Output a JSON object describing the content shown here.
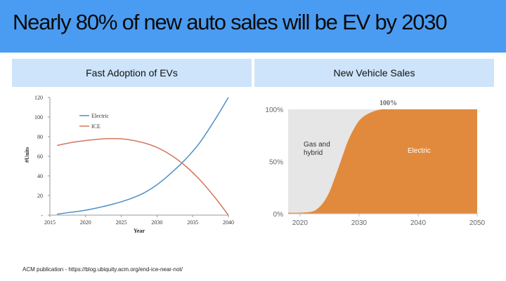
{
  "slide": {
    "title": "Nearly 80% of new auto sales will be EV by 2030",
    "footer": "ACM publication - https://blog.ubiquity.acm.org/end-ice-near-not/"
  },
  "colors": {
    "banner": "#4a9cf2",
    "panel_header": "#cde4fb",
    "electric_line": "#4f8fc6",
    "ice_line": "#d2775b",
    "electric_area": "#e18a3e",
    "gas_area": "#e6e6e6"
  },
  "chart_data": [
    {
      "type": "line",
      "title": "Fast Adoption of EVs",
      "xlabel": "Year",
      "ylabel": "#Units",
      "xlim": [
        2015,
        2040
      ],
      "ylim": [
        0,
        120
      ],
      "x_ticks": [
        2015,
        2020,
        2025,
        2030,
        2035,
        2040
      ],
      "y_ticks": [
        {
          "value": 0,
          "label": "-"
        },
        {
          "value": 20,
          "label": "20"
        },
        {
          "value": 40,
          "label": "40"
        },
        {
          "value": 60,
          "label": "60"
        },
        {
          "value": 80,
          "label": "80"
        },
        {
          "value": 100,
          "label": "100"
        },
        {
          "value": 120,
          "label": "120"
        }
      ],
      "grid": false,
      "legend": "top-left",
      "series": [
        {
          "name": "Electric",
          "color": "#4f8fc6",
          "x": [
            2016,
            2018,
            2020,
            2022,
            2024,
            2026,
            2028,
            2030,
            2032,
            2034,
            2036,
            2038,
            2040
          ],
          "y": [
            1,
            3,
            5,
            8,
            11.5,
            16,
            22,
            31,
            43,
            57,
            74,
            96,
            120
          ]
        },
        {
          "name": "ICE",
          "color": "#d2775b",
          "x": [
            2016,
            2018,
            2020,
            2022,
            2024,
            2026,
            2028,
            2030,
            2032,
            2034,
            2036,
            2038,
            2040
          ],
          "y": [
            71,
            74,
            76,
            77.5,
            78,
            77,
            74,
            69,
            61,
            50,
            36,
            19,
            0
          ]
        }
      ]
    },
    {
      "type": "area",
      "title": "New Vehicle Sales",
      "xlim": [
        2018,
        2050
      ],
      "ylim": [
        0,
        100
      ],
      "x_ticks": [
        2020,
        2030,
        2040,
        2050
      ],
      "y_ticks": [
        {
          "value": 0,
          "label": "0%"
        },
        {
          "value": 50,
          "label": "50%"
        },
        {
          "value": 100,
          "label": "100%"
        }
      ],
      "grid": false,
      "annotations": [
        {
          "text": "100%",
          "x": 2034,
          "y": 100
        }
      ],
      "series": [
        {
          "name": "Electric",
          "color": "#e18a3e",
          "x": [
            2018,
            2020,
            2022,
            2023,
            2024,
            2025,
            2026,
            2027,
            2028,
            2029,
            2030,
            2031,
            2032,
            2033,
            2034,
            2035,
            2040,
            2050
          ],
          "y": [
            1,
            1,
            2,
            5,
            11,
            21,
            36,
            52,
            68,
            80,
            89,
            94,
            97,
            99,
            100,
            100,
            100,
            100
          ]
        },
        {
          "name": "Gas and hybrid",
          "color": "#e6e6e6",
          "x": [
            2018,
            2020,
            2022,
            2023,
            2024,
            2025,
            2026,
            2027,
            2028,
            2029,
            2030,
            2031,
            2032,
            2033,
            2034,
            2035,
            2040,
            2050
          ],
          "y": [
            99,
            99,
            98,
            95,
            89,
            79,
            64,
            48,
            32,
            20,
            11,
            6,
            3,
            1,
            0,
            0,
            0,
            0
          ]
        }
      ],
      "labels": {
        "gas": [
          "Gas and",
          "hybrid"
        ],
        "electric": "Electric"
      }
    }
  ]
}
